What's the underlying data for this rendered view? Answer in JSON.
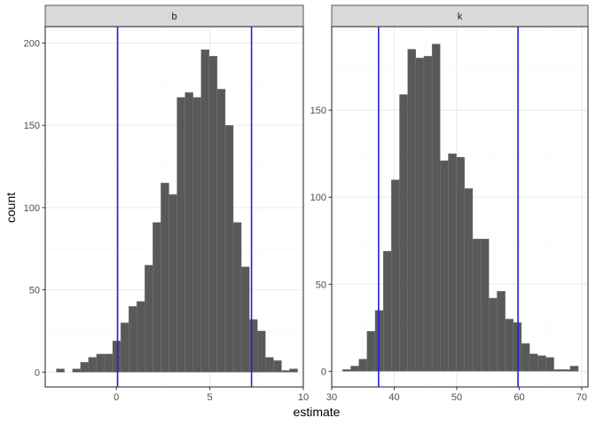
{
  "chart_data": {
    "type": "bar",
    "xlabel": "estimate",
    "ylabel": "count",
    "grid": true,
    "panels": [
      {
        "strip_label": "b",
        "xlim": [
          -3.8,
          10
        ],
        "ylim": [
          -9,
          210
        ],
        "x_ticks": [
          0,
          5,
          10
        ],
        "x_tick_labels": [
          "0",
          "5",
          "10"
        ],
        "y_ticks": [
          0,
          50,
          100,
          150,
          200
        ],
        "y_tick_labels": [
          "0",
          "50",
          "100",
          "150",
          "200"
        ],
        "bin_width": 0.43,
        "bin_centers": [
          -2.99,
          -2.56,
          -2.13,
          -1.7,
          -1.27,
          -0.84,
          -0.41,
          0.02,
          0.45,
          0.88,
          1.31,
          1.74,
          2.17,
          2.6,
          3.03,
          3.46,
          3.89,
          4.32,
          4.75,
          5.18,
          5.61,
          6.04,
          6.47,
          6.9,
          7.33,
          7.76,
          8.19,
          8.62,
          9.05,
          9.48
        ],
        "counts": [
          2,
          0,
          2,
          6,
          9,
          11,
          11,
          19,
          30,
          40,
          43,
          65,
          91,
          115,
          108,
          167,
          170,
          167,
          196,
          192,
          172,
          150,
          91,
          64,
          32,
          25,
          9,
          7,
          1,
          2
        ],
        "vlines": [
          0.07,
          7.23
        ]
      },
      {
        "strip_label": "k",
        "xlim": [
          30,
          71
        ],
        "ylim": [
          -9,
          198
        ],
        "x_ticks": [
          30,
          40,
          50,
          60,
          70
        ],
        "x_tick_labels": [
          "30",
          "40",
          "50",
          "60",
          "70"
        ],
        "y_ticks": [
          0,
          50,
          100,
          150
        ],
        "y_tick_labels": [
          "0",
          "50",
          "100",
          "150"
        ],
        "bin_width": 1.3,
        "bin_centers": [
          32.4,
          33.7,
          35.0,
          36.3,
          37.6,
          38.9,
          40.2,
          41.5,
          42.8,
          44.1,
          45.4,
          46.7,
          48.0,
          49.3,
          50.6,
          51.9,
          53.2,
          54.5,
          55.8,
          57.1,
          58.4,
          59.7,
          61.0,
          62.3,
          63.6,
          64.9,
          66.2,
          67.5,
          68.8
        ],
        "counts": [
          1,
          3,
          7,
          23,
          35,
          69,
          110,
          159,
          185,
          180,
          181,
          188,
          121,
          125,
          123,
          105,
          76,
          76,
          42,
          46,
          30,
          28,
          16,
          10,
          9,
          8,
          1,
          1,
          3
        ],
        "vlines": [
          37.5,
          59.8
        ]
      }
    ],
    "colors": {
      "bar_fill": "#595959",
      "bar_stroke": "#7a7a7a",
      "vline": "#2222dd",
      "strip_fill": "#d9d9d9",
      "grid_major": "#ebebeb",
      "grid_minor": "#f5f5f5"
    }
  }
}
